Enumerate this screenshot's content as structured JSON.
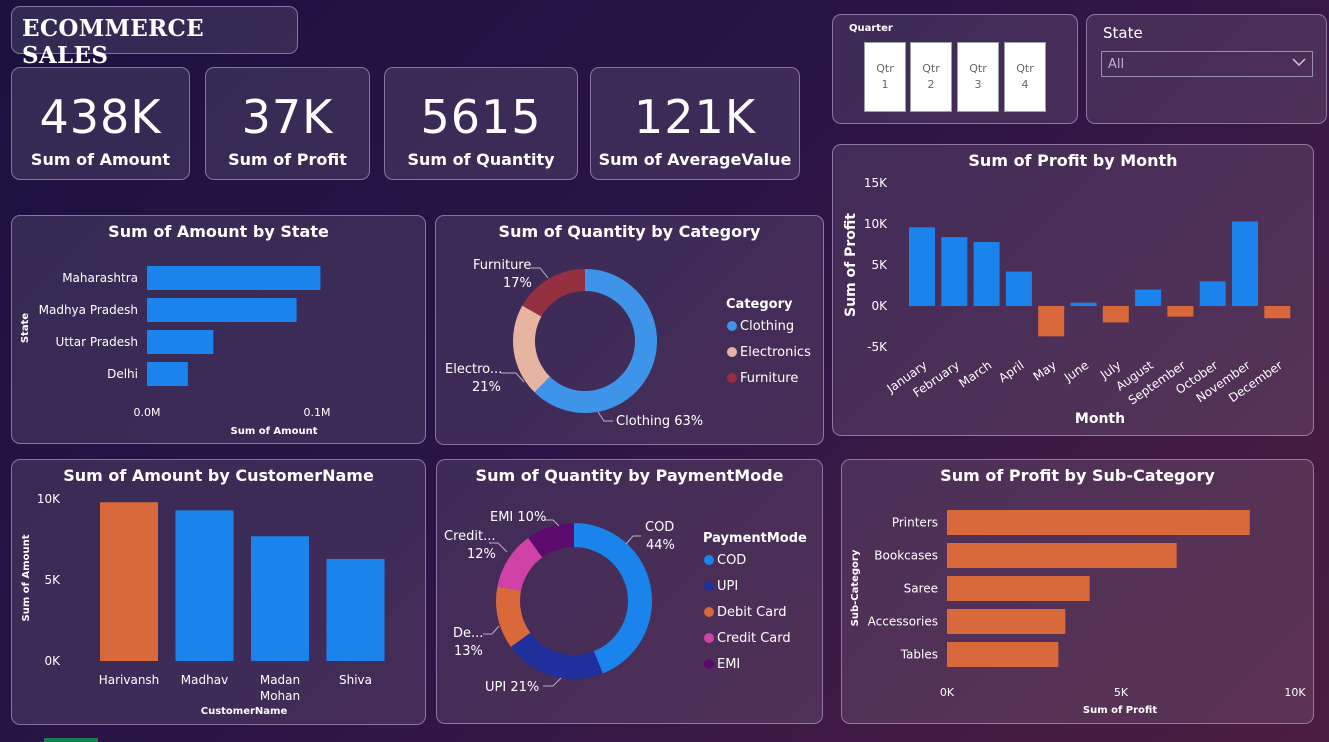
{
  "header": {
    "title": "ECOMMERCE SALES"
  },
  "kpis": [
    {
      "value": "438K",
      "label": "Sum of Amount"
    },
    {
      "value": "37K",
      "label": "Sum of Profit"
    },
    {
      "value": "5615",
      "label": "Sum of Quantity"
    },
    {
      "value": "121K",
      "label": "Sum of AverageValue"
    }
  ],
  "quarter_slicer": {
    "title": "Quarter",
    "options": [
      {
        "l1": "Qtr",
        "l2": "1"
      },
      {
        "l1": "Qtr",
        "l2": "2"
      },
      {
        "l1": "Qtr",
        "l2": "3"
      },
      {
        "l1": "Qtr",
        "l2": "4"
      }
    ]
  },
  "state_slicer": {
    "title": "State",
    "value": "All",
    "icon": "chevron-down-icon"
  },
  "colors": {
    "blue": "#1a84ec",
    "orange": "#d9683a",
    "navy": "#1f2f9c",
    "pink": "#d142a8",
    "purple": "#5d0a6e",
    "peach": "#e8b4a2",
    "darkred": "#943040",
    "sky": "#3e94e8"
  },
  "chart_data": [
    {
      "id": "amount_by_state",
      "type": "bar",
      "orientation": "horizontal",
      "title": "Sum of Amount by State",
      "xlabel": "Sum of Amount",
      "ylabel": "State",
      "categories": [
        "Maharashtra",
        "Madhya Pradesh",
        "Uttar Pradesh",
        "Delhi"
      ],
      "values": [
        102000,
        88000,
        39000,
        24000
      ],
      "xticks": [
        "0.0M",
        "0.1M"
      ],
      "xtick_values": [
        0,
        100000
      ],
      "xlim": [
        0,
        100000
      ]
    },
    {
      "id": "quantity_by_category",
      "type": "pie",
      "donut": true,
      "title": "Sum of Quantity by Category",
      "legend_title": "Category",
      "legend_position": "right",
      "slices": [
        {
          "name": "Clothing",
          "value": 63,
          "label": "Clothing 63%",
          "color": "#3e94e8"
        },
        {
          "name": "Electronics",
          "value": 21,
          "label_l1": "Electro...",
          "label_l2": "21%",
          "color": "#e8b4a2"
        },
        {
          "name": "Furniture",
          "value": 17,
          "label_l1": "Furniture",
          "label_l2": "17%",
          "color": "#943040"
        }
      ]
    },
    {
      "id": "profit_by_month",
      "type": "bar",
      "title": "Sum of Profit by Month",
      "xlabel": "Month",
      "ylabel": "Sum of Profit",
      "categories": [
        "January",
        "February",
        "March",
        "April",
        "May",
        "June",
        "July",
        "August",
        "September",
        "October",
        "November",
        "December"
      ],
      "values": [
        9600,
        8400,
        7800,
        4200,
        -3700,
        400,
        -2000,
        2000,
        -1300,
        3000,
        10300,
        -1500
      ],
      "ylim": [
        -5000,
        15000
      ],
      "yticks": [
        "15K",
        "10K",
        "5K",
        "0K",
        "-5K"
      ],
      "ytick_values": [
        15000,
        10000,
        5000,
        0,
        -5000
      ]
    },
    {
      "id": "amount_by_customer",
      "type": "bar",
      "title": "Sum of Amount by CustomerName",
      "xlabel": "CustomerName",
      "ylabel": "Sum of Amount",
      "categories": [
        "Harivansh",
        "Madhav",
        "Madan Mohan",
        "Shiva"
      ],
      "category_lines": [
        [
          "Harivansh"
        ],
        [
          "Madhav"
        ],
        [
          "Madan",
          "Mohan"
        ],
        [
          "Shiva"
        ]
      ],
      "values": [
        9800,
        9300,
        7700,
        6300
      ],
      "ylim": [
        0,
        10000
      ],
      "yticks": [
        "10K",
        "5K",
        "0K"
      ],
      "ytick_values": [
        10000,
        5000,
        0
      ]
    },
    {
      "id": "quantity_by_paymentmode",
      "type": "pie",
      "donut": true,
      "title": "Sum of Quantity by PaymentMode",
      "legend_title": "PaymentMode",
      "legend_position": "right",
      "slices": [
        {
          "name": "COD",
          "value": 44,
          "label_l1": "COD",
          "label_l2": "44%",
          "color": "#1a84ec"
        },
        {
          "name": "UPI",
          "value": 21,
          "label": "UPI 21%",
          "color": "#1f2f9c"
        },
        {
          "name": "Debit Card",
          "value": 13,
          "label_l1": "De...",
          "label_l2": "13%",
          "color": "#d9683a"
        },
        {
          "name": "Credit Card",
          "value": 12,
          "label_l1": "Credit...",
          "label_l2": "12%",
          "color": "#d142a8"
        },
        {
          "name": "EMI",
          "value": 10,
          "label": "EMI 10%",
          "color": "#5d0a6e"
        }
      ]
    },
    {
      "id": "profit_by_subcategory",
      "type": "bar",
      "orientation": "horizontal",
      "title": "Sum of Profit by Sub-Category",
      "xlabel": "Sum of Profit",
      "ylabel": "Sub-Category",
      "categories": [
        "Printers",
        "Bookcases",
        "Saree",
        "Accessories",
        "Tables"
      ],
      "values": [
        8700,
        6600,
        4100,
        3400,
        3200
      ],
      "xticks": [
        "0K",
        "5K",
        "10K"
      ],
      "xtick_values": [
        0,
        5000,
        10000
      ],
      "xlim": [
        0,
        10000
      ]
    }
  ]
}
